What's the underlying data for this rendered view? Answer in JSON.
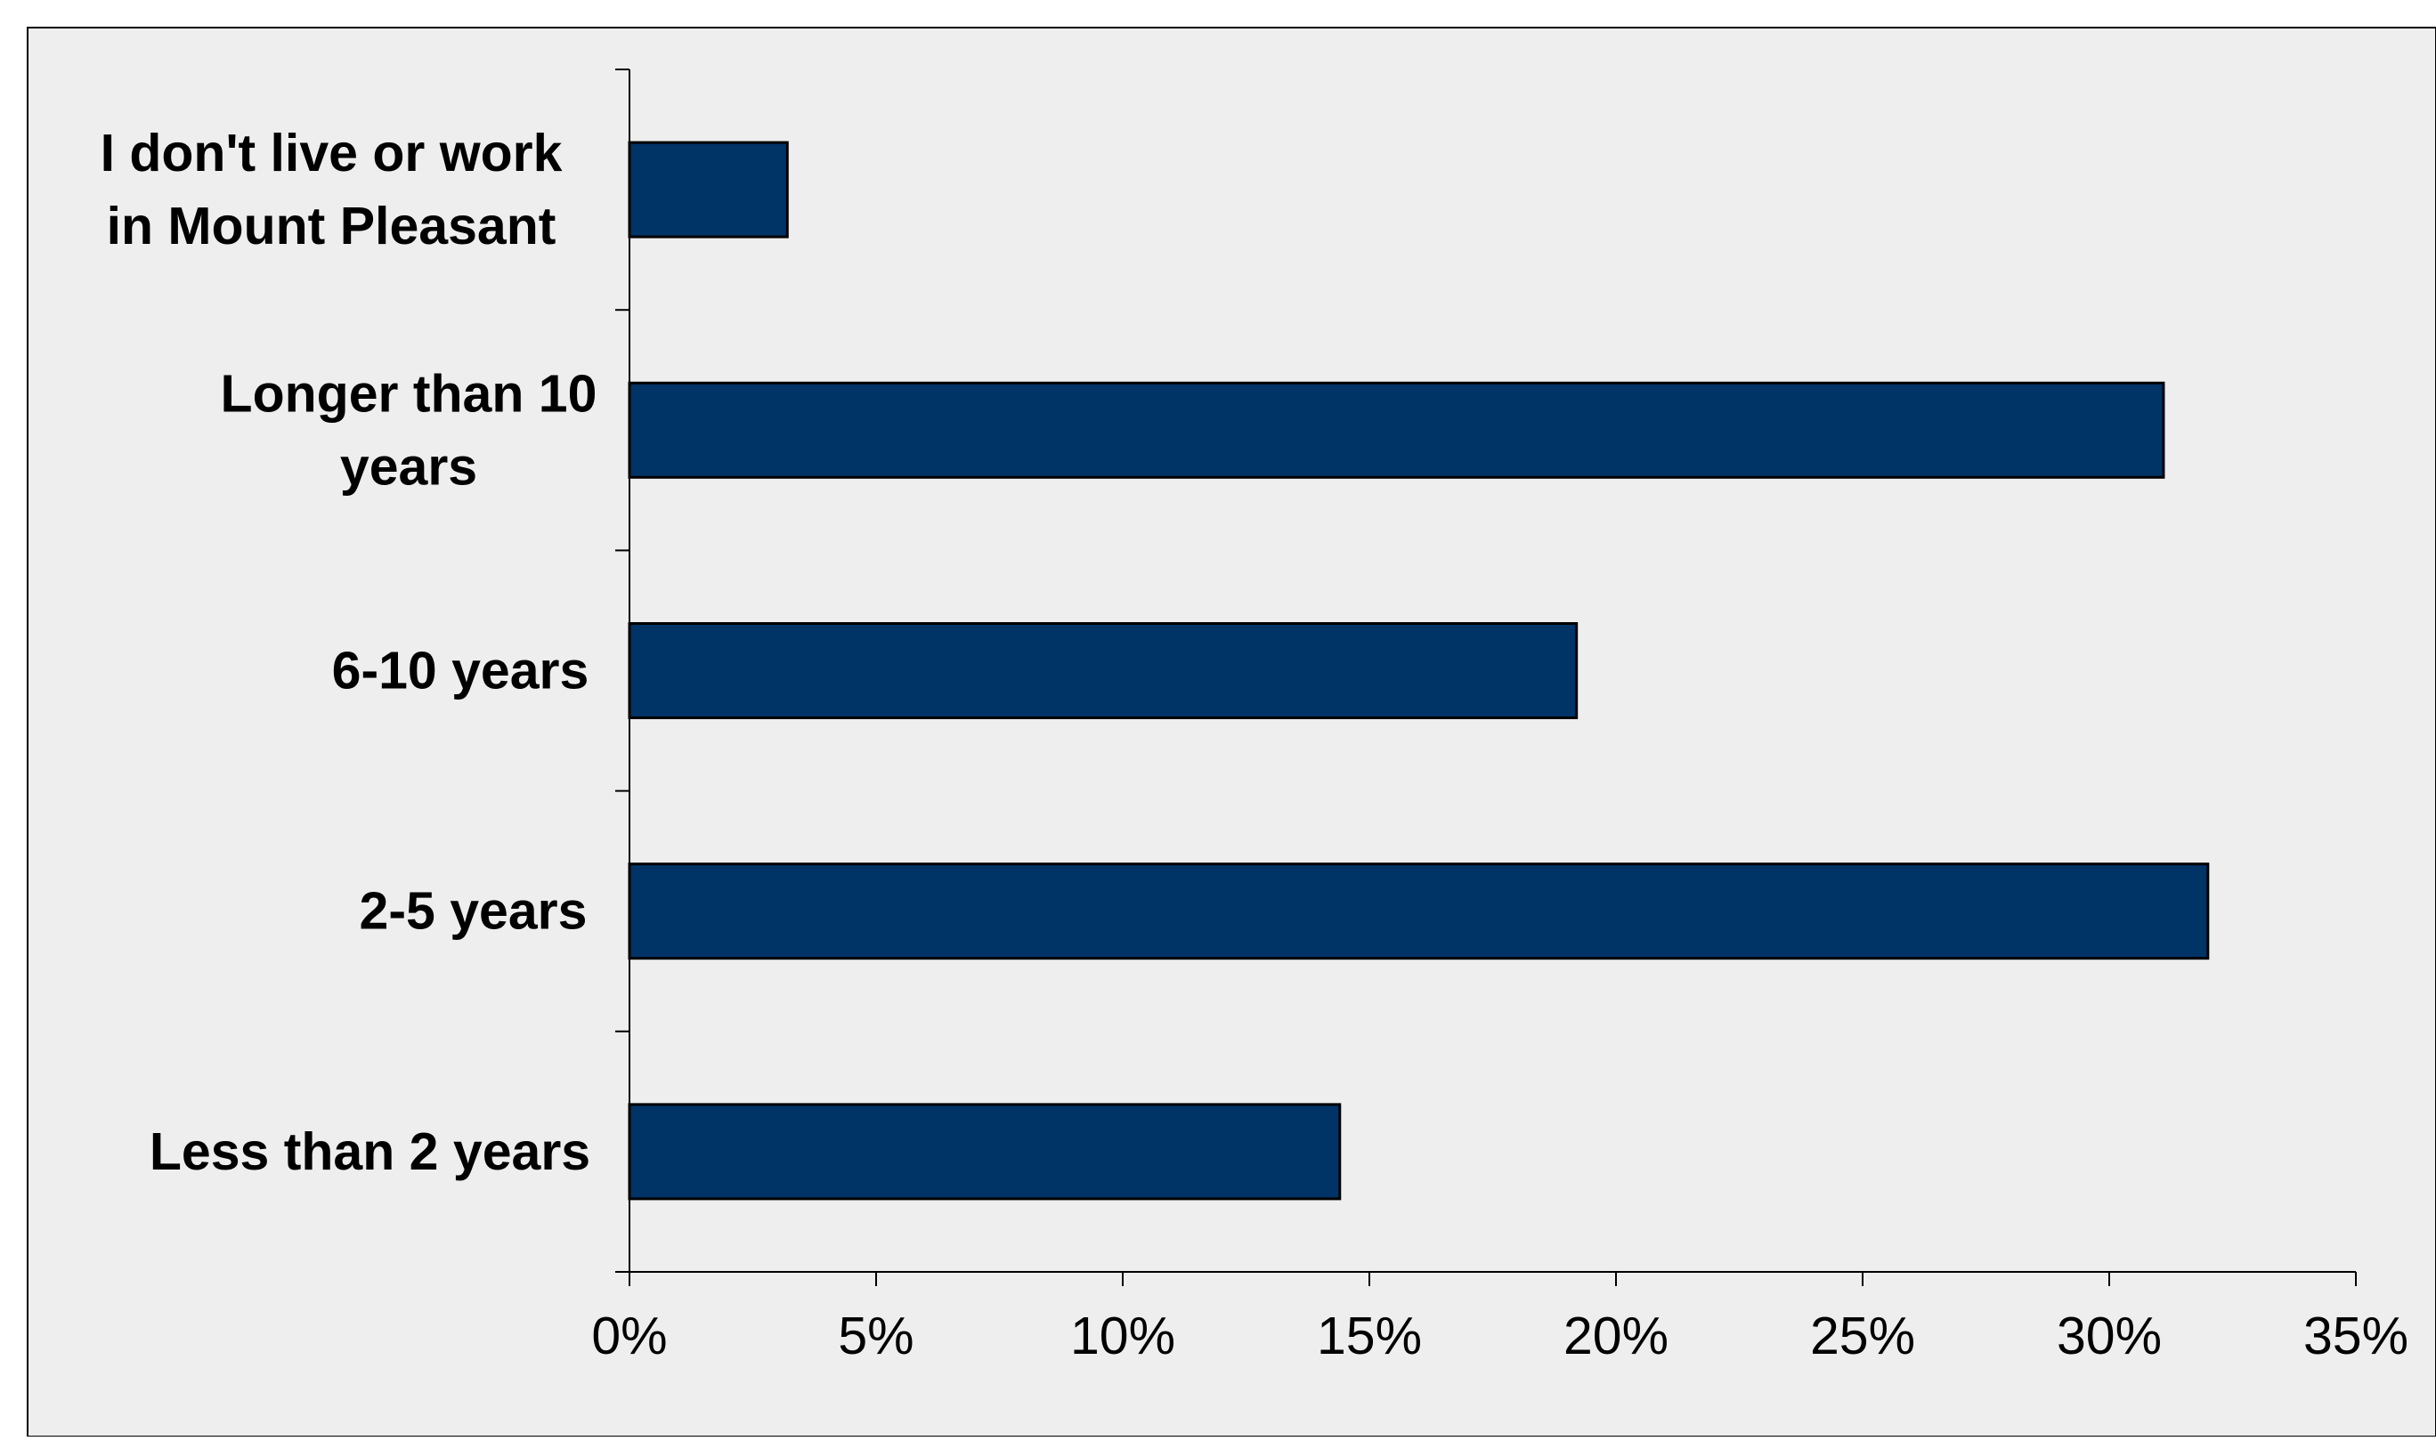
{
  "chart_data": {
    "type": "bar",
    "orientation": "horizontal",
    "categories": [
      "I don't live or work in Mount Pleasant",
      "Longer than 10 years",
      "6-10 years",
      "2-5 years",
      "Less than 2 years"
    ],
    "category_lines": [
      [
        "I don't live or work",
        "in Mount Pleasant"
      ],
      [
        "Longer than 10",
        "years"
      ],
      [
        "6-10 years"
      ],
      [
        "2-5 years"
      ],
      [
        "Less than 2 years"
      ]
    ],
    "values": [
      3.2,
      31.1,
      19.2,
      32.0,
      14.4
    ],
    "xlim": [
      0,
      35
    ],
    "xticks": [
      0,
      5,
      10,
      15,
      20,
      25,
      30,
      35
    ],
    "xtick_labels": [
      "0%",
      "5%",
      "10%",
      "15%",
      "20%",
      "25%",
      "30%",
      "35%"
    ],
    "title": "",
    "xlabel": "",
    "ylabel": "",
    "grid": false,
    "legend": "none",
    "colors": {
      "bar_fill": "#003366",
      "bar_stroke": "#000000",
      "plot_background": "#eeeeee",
      "axis": "#000000"
    }
  }
}
